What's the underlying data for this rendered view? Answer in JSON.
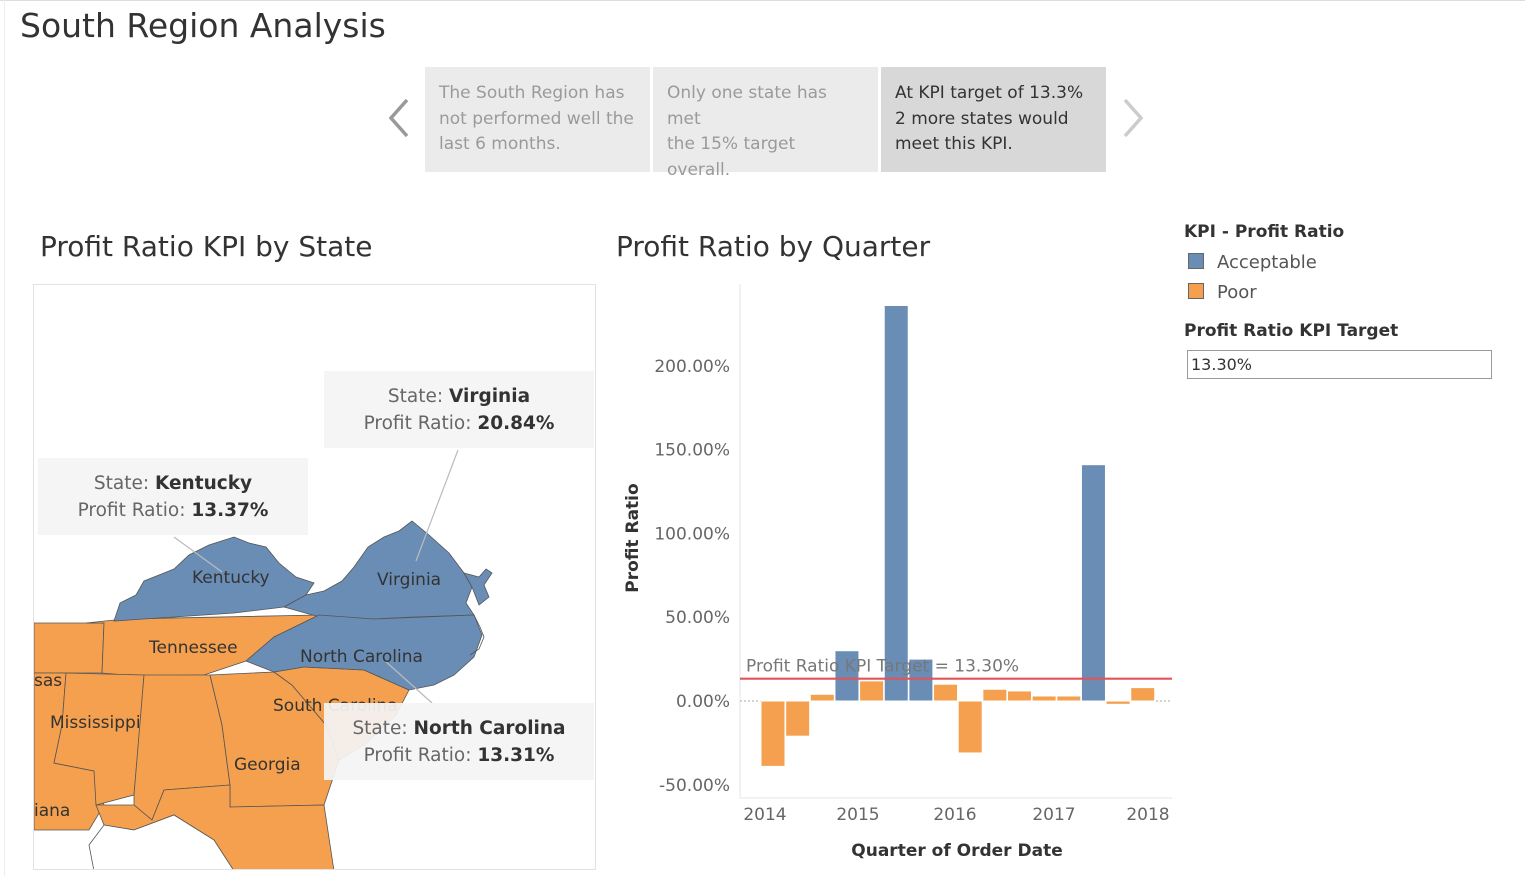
{
  "title": "South Region Analysis",
  "story": {
    "points": [
      {
        "text_lines": [
          "The South Region has",
          "not performed well the",
          "last 6 months."
        ]
      },
      {
        "text_lines": [
          "Only one state has met",
          "the 15%  target",
          "overall."
        ]
      },
      {
        "text_lines": [
          "At KPI target of 13.3%",
          "2 more states would",
          "meet this KPI."
        ],
        "active": true
      }
    ],
    "prev_icon": "chevron-left-icon",
    "next_icon": "chevron-right-icon"
  },
  "map": {
    "title": "Profit Ratio KPI by State",
    "states": [
      {
        "label": "Kentucky",
        "kpi": "Acceptable"
      },
      {
        "label": "Virginia",
        "kpi": "Acceptable"
      },
      {
        "label": "Tennessee",
        "kpi": "Poor"
      },
      {
        "label": "North Carolina",
        "kpi": "Acceptable"
      },
      {
        "label": "South Carolina",
        "kpi": "Poor"
      },
      {
        "label": "Mississippi",
        "kpi": "Poor"
      },
      {
        "label": "Georgia",
        "kpi": "Poor"
      },
      {
        "label": "sas",
        "kpi": "Poor"
      },
      {
        "label": "iana",
        "kpi": "Poor"
      }
    ],
    "tooltips": [
      {
        "state_label": "State:",
        "state": "Virginia",
        "ratio_label": "Profit Ratio:",
        "ratio": "20.84%"
      },
      {
        "state_label": "State:",
        "state": "Kentucky",
        "ratio_label": "Profit Ratio:",
        "ratio": "13.37%"
      },
      {
        "state_label": "State:",
        "state": "North Carolina",
        "ratio_label": "Profit Ratio:",
        "ratio": "13.31%"
      }
    ]
  },
  "chart_data": {
    "type": "bar",
    "title": "Profit Ratio by Quarter",
    "xlabel": "Quarter of Order Date",
    "ylabel": "Profit Ratio",
    "ylim": [
      -60,
      250
    ],
    "yticks": [
      -50,
      0,
      50,
      100,
      150,
      200
    ],
    "ytick_labels": [
      "-50.00%",
      "0.00%",
      "50.00%",
      "100.00%",
      "150.00%",
      "200.00%"
    ],
    "xticks": [
      "2014",
      "2015",
      "2016",
      "2017",
      "2018"
    ],
    "quarters": [
      "2014 Q1",
      "2014 Q2",
      "2014 Q3",
      "2014 Q4",
      "2015 Q1",
      "2015 Q2",
      "2015 Q3",
      "2015 Q4",
      "2016 Q1",
      "2016 Q2",
      "2016 Q3",
      "2016 Q4",
      "2017 Q1",
      "2017 Q2",
      "2017 Q3",
      "2017 Q4"
    ],
    "values": [
      -39,
      -21,
      4,
      30,
      12,
      236,
      25,
      10,
      -31,
      7,
      6,
      3,
      3,
      141,
      -2,
      8
    ],
    "kpi": [
      "Poor",
      "Poor",
      "Poor",
      "Acceptable",
      "Poor",
      "Acceptable",
      "Acceptable",
      "Poor",
      "Poor",
      "Poor",
      "Poor",
      "Poor",
      "Poor",
      "Acceptable",
      "Poor",
      "Poor"
    ],
    "reference_line": {
      "value": 13.3,
      "label": "Profit Ratio KPI Target = 13.30%",
      "color": "#e0555b"
    },
    "colors": {
      "Acceptable": "#6a8db5",
      "Poor": "#f4a04e"
    },
    "grid": false,
    "legend": "right"
  },
  "legend": {
    "title": "KPI - Profit Ratio",
    "items": [
      {
        "label": "Acceptable",
        "color": "#6a8db5"
      },
      {
        "label": "Poor",
        "color": "#f4a04e"
      }
    ]
  },
  "parameter": {
    "title": "Profit Ratio KPI Target",
    "value": "13.30%"
  }
}
